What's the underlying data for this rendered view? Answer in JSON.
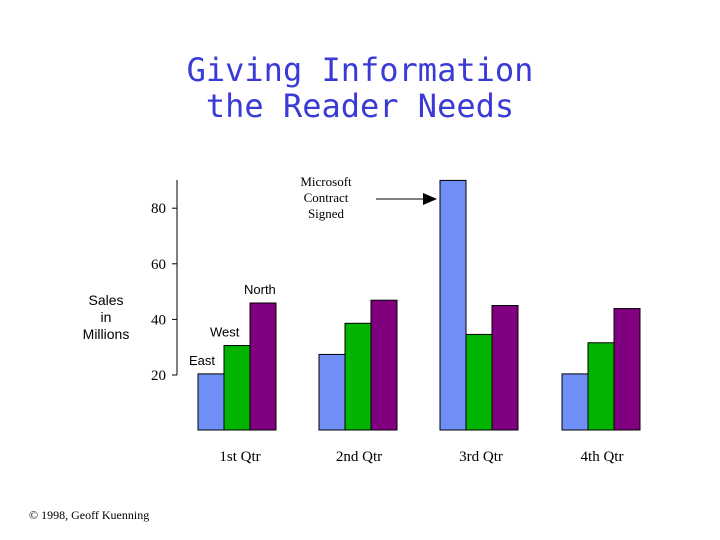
{
  "title": {
    "line1": "Giving Information",
    "line2": "the Reader Needs"
  },
  "colors": {
    "title": "#3a3ad6",
    "East": "#6f8ff7",
    "West": "#00b400",
    "North": "#800080"
  },
  "footer": {
    "copyright": "© 1998, Geoff Kuenning"
  },
  "chart_data": {
    "type": "bar",
    "title": "",
    "ylabel": [
      "Sales",
      "in",
      "Millions"
    ],
    "xlabel": "",
    "categories": [
      "1st Qtr",
      "2nd Qtr",
      "3rd Qtr",
      "4th Qtr"
    ],
    "yticks": [
      20,
      40,
      60,
      80
    ],
    "ylim": [
      20,
      90
    ],
    "series": [
      {
        "name": "East",
        "values": [
          20.4,
          27.4,
          90,
          20.4
        ]
      },
      {
        "name": "West",
        "values": [
          30.6,
          38.6,
          34.6,
          31.6
        ]
      },
      {
        "name": "North",
        "values": [
          45.9,
          46.9,
          45,
          43.9
        ]
      }
    ],
    "annotation": {
      "lines": [
        "Microsoft",
        "Contract",
        "Signed"
      ],
      "target_category": "3rd Qtr",
      "target_series": "East"
    },
    "legend": "series names placed beside the 1st Qtr bars",
    "grid": false
  }
}
